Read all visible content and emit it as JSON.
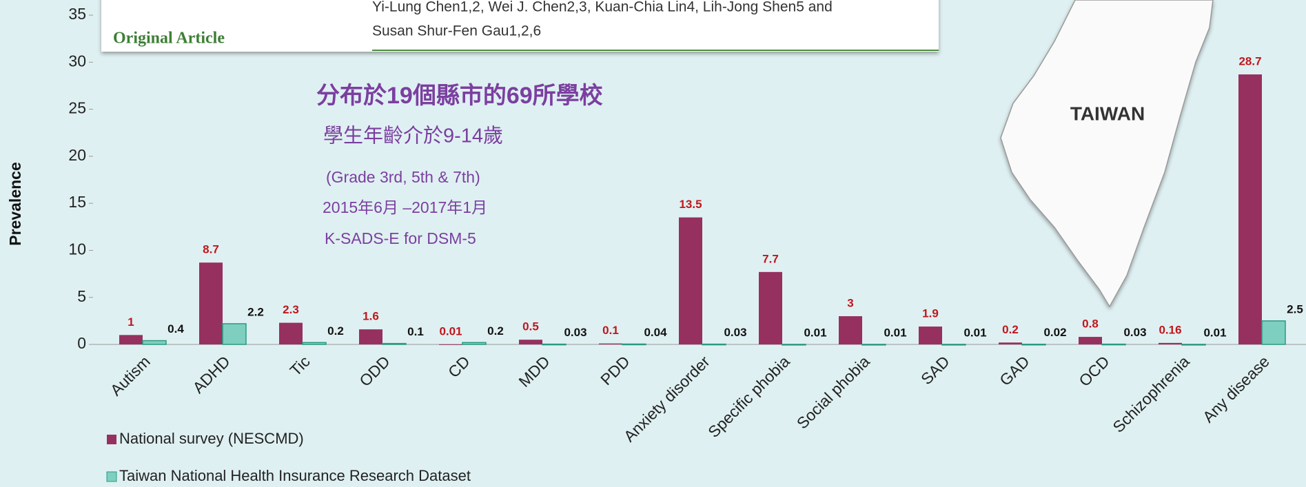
{
  "chart_data": {
    "type": "bar",
    "categories": [
      "Autism",
      "ADHD",
      "Tic",
      "ODD",
      "CD",
      "MDD",
      "PDD",
      "Anxiety disorder",
      "Specific phobia",
      "Social phobia",
      "SAD",
      "GAD",
      "OCD",
      "Schizophrenia",
      "Any disease"
    ],
    "series": [
      {
        "name": "National survey (NESCMD)",
        "color": "#96305f",
        "label_color": "#c0161c",
        "values": [
          1,
          8.7,
          2.3,
          1.6,
          0.01,
          0.5,
          0.1,
          13.5,
          7.7,
          3,
          1.9,
          0.2,
          0.8,
          0.16,
          28.7
        ]
      },
      {
        "name": "Taiwan National Health Insurance Research Dataset",
        "color": "#7ecfbf",
        "label_color": "#111111",
        "values": [
          0.4,
          2.2,
          0.2,
          0.1,
          0.2,
          0.03,
          0.04,
          0.03,
          0.01,
          0.01,
          0.01,
          0.02,
          0.03,
          0.01,
          2.5
        ]
      }
    ],
    "ylabel": "Prevalence",
    "ylim": [
      0,
      35
    ],
    "yticks": [
      0,
      5,
      10,
      15,
      20,
      25,
      30,
      35
    ],
    "annotations": [
      "分布於19個縣市的69所學校",
      "學生年齡介於9-14歲",
      "(Grade 3rd, 5th & 7th)",
      "2015年6月 –2017年1月",
      "K-SADS-E for DSM-5"
    ]
  },
  "article": {
    "label": "Original Article",
    "authors": [
      "Yi-Lung Chen1,2, Wei J. Chen2,3, Kuan-Chia Lin4, Lih-Jong Shen5 and",
      "Susan Shur-Fen Gau1,2,6"
    ]
  },
  "map": {
    "label": "TAIWAN"
  }
}
